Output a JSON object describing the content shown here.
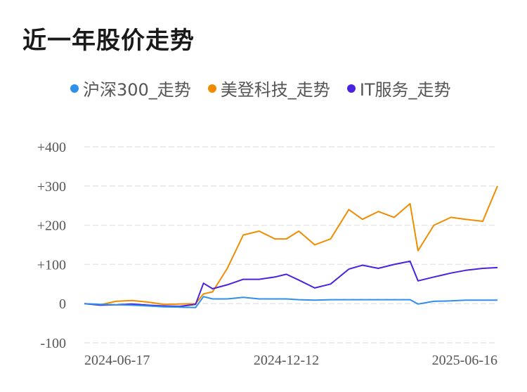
{
  "title": "近一年股价走势",
  "colors": {
    "csi300": "#2f8fe9",
    "meideng": "#f08c00",
    "it": "#4a22e0",
    "grid": "#e6e6e6"
  },
  "chart_data": {
    "type": "line",
    "x_ticks": [
      "2024-06-17",
      "2024-12-12",
      "2025-06-16"
    ],
    "x": [
      "2024-06-17",
      "2024-07-01",
      "2024-07-15",
      "2024-07-29",
      "2024-08-12",
      "2024-08-26",
      "2024-09-09",
      "2024-09-23",
      "2024-09-30",
      "2024-10-08",
      "2024-10-21",
      "2024-11-04",
      "2024-11-18",
      "2024-12-02",
      "2024-12-12",
      "2024-12-23",
      "2025-01-06",
      "2025-01-20",
      "2025-02-05",
      "2025-02-17",
      "2025-03-03",
      "2025-03-17",
      "2025-03-31",
      "2025-04-07",
      "2025-04-21",
      "2025-05-06",
      "2025-05-19",
      "2025-06-03",
      "2025-06-16"
    ],
    "series": [
      {
        "name": "沪深300_走势",
        "values": [
          0,
          -2,
          -3,
          -4,
          -6,
          -8,
          -9,
          -10,
          18,
          12,
          12,
          16,
          12,
          12,
          12,
          10,
          9,
          10,
          10,
          10,
          10,
          10,
          10,
          -1,
          6,
          7,
          9,
          9,
          9
        ]
      },
      {
        "name": "美登科技_走势",
        "values": [
          0,
          -3,
          6,
          8,
          4,
          -2,
          -1,
          0,
          25,
          30,
          90,
          175,
          185,
          165,
          165,
          185,
          150,
          165,
          240,
          215,
          235,
          220,
          255,
          135,
          200,
          220,
          215,
          210,
          300
        ]
      },
      {
        "name": "IT服务_走势",
        "values": [
          0,
          -4,
          -3,
          -1,
          -4,
          -6,
          -7,
          -2,
          52,
          38,
          48,
          62,
          62,
          68,
          75,
          60,
          40,
          50,
          88,
          98,
          90,
          100,
          108,
          58,
          68,
          78,
          85,
          90,
          92
        ]
      }
    ],
    "ylim": [
      -100,
      400
    ],
    "y_ticks": [
      "-100",
      "0",
      "+100",
      "+200",
      "+300",
      "+400"
    ],
    "grid": true,
    "legend": "top"
  }
}
